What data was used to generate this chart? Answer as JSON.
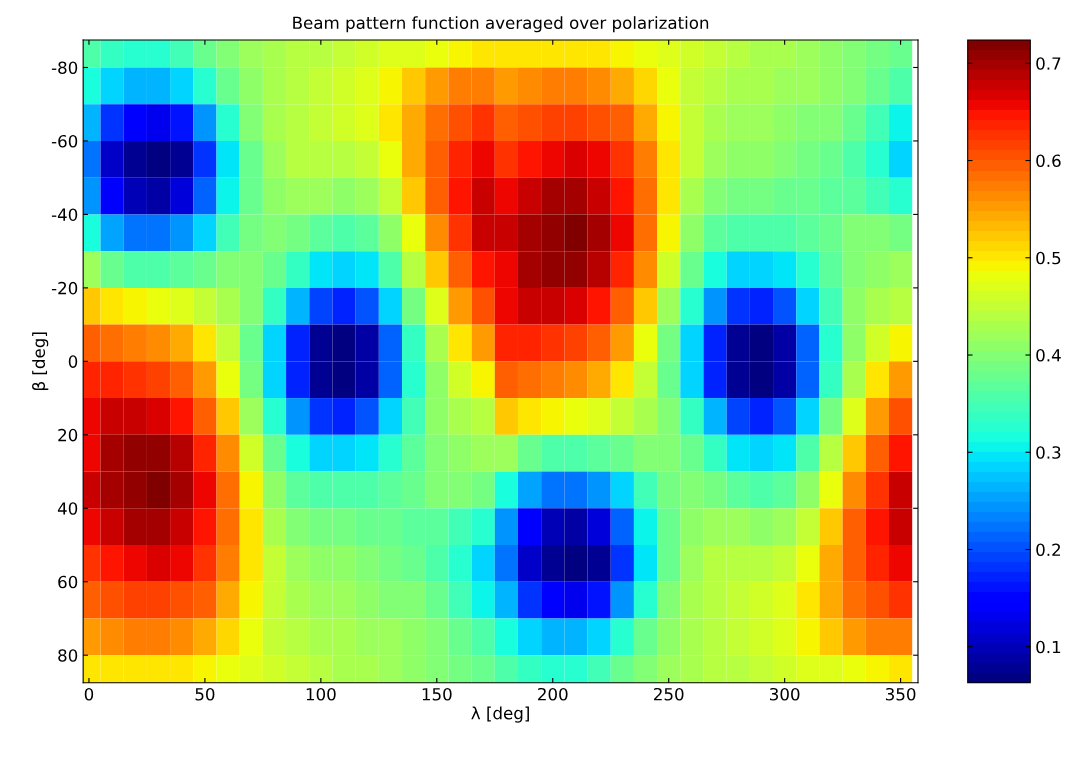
{
  "chart_data": {
    "type": "heatmap",
    "title": "Beam pattern function averaged over polarization",
    "xlabel": "λ [deg]",
    "ylabel": "β [deg]",
    "x": [
      0,
      10,
      20,
      30,
      40,
      50,
      60,
      70,
      80,
      90,
      100,
      110,
      120,
      130,
      140,
      150,
      160,
      170,
      180,
      190,
      200,
      210,
      220,
      230,
      240,
      250,
      260,
      270,
      280,
      290,
      300,
      310,
      320,
      330,
      340,
      350
    ],
    "y": [
      -85,
      -75,
      -65,
      -55,
      -45,
      -35,
      -25,
      -15,
      -5,
      5,
      15,
      25,
      35,
      45,
      55,
      65,
      75,
      85
    ],
    "xlim": [
      -2.5,
      357.5
    ],
    "ylim": [
      87.5,
      -87.5
    ],
    "xticks": [
      0,
      50,
      100,
      150,
      200,
      250,
      300,
      350
    ],
    "yticks": [
      -80,
      -60,
      -40,
      -20,
      0,
      20,
      40,
      60,
      80
    ],
    "clim": [
      0.063,
      0.724
    ],
    "cticks": [
      0.1,
      0.2,
      0.3,
      0.4,
      0.5,
      0.6,
      0.7
    ],
    "cells": [
      [
        0.36,
        0.34,
        0.33,
        0.33,
        0.35,
        0.38,
        0.4,
        0.42,
        0.43,
        0.44,
        0.44,
        0.45,
        0.46,
        0.47,
        0.47,
        0.48,
        0.49,
        0.5,
        0.5,
        0.5,
        0.5,
        0.5,
        0.5,
        0.49,
        0.48,
        0.47,
        0.46,
        0.45,
        0.44,
        0.43,
        0.43,
        0.42,
        0.41,
        0.4,
        0.39,
        0.38
      ],
      [
        0.32,
        0.28,
        0.26,
        0.26,
        0.28,
        0.33,
        0.38,
        0.41,
        0.43,
        0.44,
        0.45,
        0.46,
        0.47,
        0.49,
        0.52,
        0.55,
        0.57,
        0.57,
        0.55,
        0.56,
        0.57,
        0.57,
        0.56,
        0.54,
        0.51,
        0.48,
        0.45,
        0.44,
        0.43,
        0.43,
        0.42,
        0.42,
        0.41,
        0.4,
        0.38,
        0.36
      ],
      [
        0.26,
        0.18,
        0.14,
        0.13,
        0.16,
        0.24,
        0.33,
        0.4,
        0.43,
        0.44,
        0.45,
        0.46,
        0.47,
        0.5,
        0.54,
        0.58,
        0.61,
        0.63,
        0.6,
        0.61,
        0.62,
        0.62,
        0.61,
        0.59,
        0.54,
        0.49,
        0.45,
        0.43,
        0.42,
        0.42,
        0.41,
        0.4,
        0.4,
        0.38,
        0.35,
        0.31
      ],
      [
        0.22,
        0.11,
        0.08,
        0.07,
        0.08,
        0.18,
        0.3,
        0.38,
        0.42,
        0.44,
        0.44,
        0.44,
        0.45,
        0.48,
        0.54,
        0.6,
        0.64,
        0.66,
        0.63,
        0.65,
        0.66,
        0.67,
        0.66,
        0.63,
        0.57,
        0.5,
        0.45,
        0.42,
        0.41,
        0.41,
        0.4,
        0.39,
        0.38,
        0.36,
        0.33,
        0.28
      ],
      [
        0.24,
        0.14,
        0.1,
        0.09,
        0.12,
        0.21,
        0.31,
        0.38,
        0.41,
        0.42,
        0.42,
        0.41,
        0.42,
        0.45,
        0.52,
        0.59,
        0.65,
        0.68,
        0.66,
        0.68,
        0.7,
        0.7,
        0.68,
        0.65,
        0.58,
        0.5,
        0.43,
        0.4,
        0.39,
        0.39,
        0.38,
        0.38,
        0.37,
        0.37,
        0.35,
        0.33
      ],
      [
        0.32,
        0.25,
        0.22,
        0.22,
        0.24,
        0.29,
        0.35,
        0.39,
        0.4,
        0.39,
        0.37,
        0.36,
        0.37,
        0.41,
        0.48,
        0.56,
        0.63,
        0.68,
        0.68,
        0.7,
        0.71,
        0.72,
        0.7,
        0.66,
        0.58,
        0.49,
        0.41,
        0.37,
        0.36,
        0.36,
        0.36,
        0.37,
        0.38,
        0.4,
        0.4,
        0.39
      ],
      [
        0.42,
        0.38,
        0.36,
        0.36,
        0.37,
        0.38,
        0.4,
        0.4,
        0.38,
        0.34,
        0.3,
        0.28,
        0.3,
        0.36,
        0.44,
        0.52,
        0.6,
        0.65,
        0.66,
        0.7,
        0.71,
        0.71,
        0.69,
        0.64,
        0.56,
        0.46,
        0.38,
        0.32,
        0.29,
        0.28,
        0.3,
        0.33,
        0.37,
        0.4,
        0.41,
        0.42
      ],
      [
        0.52,
        0.5,
        0.49,
        0.48,
        0.47,
        0.45,
        0.43,
        0.4,
        0.34,
        0.26,
        0.19,
        0.17,
        0.2,
        0.29,
        0.39,
        0.47,
        0.55,
        0.61,
        0.66,
        0.68,
        0.68,
        0.67,
        0.65,
        0.6,
        0.52,
        0.42,
        0.33,
        0.24,
        0.18,
        0.17,
        0.2,
        0.28,
        0.35,
        0.41,
        0.43,
        0.44
      ],
      [
        0.6,
        0.58,
        0.57,
        0.56,
        0.54,
        0.5,
        0.45,
        0.38,
        0.29,
        0.17,
        0.08,
        0.07,
        0.09,
        0.21,
        0.34,
        0.43,
        0.5,
        0.55,
        0.64,
        0.64,
        0.63,
        0.62,
        0.6,
        0.55,
        0.48,
        0.39,
        0.29,
        0.17,
        0.08,
        0.07,
        0.09,
        0.21,
        0.33,
        0.41,
        0.46,
        0.49
      ],
      [
        0.64,
        0.64,
        0.63,
        0.62,
        0.6,
        0.55,
        0.48,
        0.39,
        0.29,
        0.17,
        0.08,
        0.07,
        0.09,
        0.21,
        0.33,
        0.41,
        0.46,
        0.49,
        0.6,
        0.58,
        0.57,
        0.56,
        0.54,
        0.5,
        0.45,
        0.38,
        0.29,
        0.17,
        0.08,
        0.07,
        0.09,
        0.21,
        0.34,
        0.43,
        0.5,
        0.55
      ],
      [
        0.66,
        0.68,
        0.68,
        0.67,
        0.65,
        0.6,
        0.52,
        0.42,
        0.33,
        0.24,
        0.18,
        0.17,
        0.2,
        0.28,
        0.35,
        0.41,
        0.43,
        0.44,
        0.52,
        0.5,
        0.49,
        0.48,
        0.47,
        0.45,
        0.43,
        0.4,
        0.34,
        0.26,
        0.19,
        0.17,
        0.2,
        0.29,
        0.39,
        0.47,
        0.55,
        0.61
      ],
      [
        0.66,
        0.7,
        0.71,
        0.71,
        0.69,
        0.64,
        0.56,
        0.46,
        0.38,
        0.32,
        0.29,
        0.28,
        0.3,
        0.33,
        0.37,
        0.4,
        0.41,
        0.42,
        0.42,
        0.38,
        0.36,
        0.36,
        0.37,
        0.38,
        0.4,
        0.4,
        0.38,
        0.34,
        0.3,
        0.28,
        0.3,
        0.36,
        0.44,
        0.52,
        0.6,
        0.65
      ],
      [
        0.68,
        0.7,
        0.71,
        0.72,
        0.7,
        0.66,
        0.58,
        0.49,
        0.41,
        0.37,
        0.36,
        0.36,
        0.36,
        0.37,
        0.38,
        0.4,
        0.4,
        0.39,
        0.32,
        0.25,
        0.22,
        0.22,
        0.24,
        0.29,
        0.35,
        0.39,
        0.4,
        0.39,
        0.37,
        0.36,
        0.37,
        0.41,
        0.48,
        0.56,
        0.63,
        0.68
      ],
      [
        0.66,
        0.68,
        0.7,
        0.7,
        0.68,
        0.65,
        0.58,
        0.5,
        0.43,
        0.4,
        0.39,
        0.39,
        0.38,
        0.38,
        0.37,
        0.37,
        0.35,
        0.33,
        0.24,
        0.14,
        0.1,
        0.09,
        0.12,
        0.21,
        0.31,
        0.38,
        0.41,
        0.42,
        0.42,
        0.41,
        0.42,
        0.45,
        0.52,
        0.59,
        0.65,
        0.68
      ],
      [
        0.63,
        0.65,
        0.66,
        0.67,
        0.66,
        0.63,
        0.57,
        0.5,
        0.45,
        0.42,
        0.41,
        0.41,
        0.4,
        0.39,
        0.38,
        0.36,
        0.33,
        0.28,
        0.22,
        0.11,
        0.08,
        0.07,
        0.08,
        0.18,
        0.3,
        0.38,
        0.42,
        0.44,
        0.44,
        0.44,
        0.45,
        0.48,
        0.54,
        0.6,
        0.64,
        0.66
      ],
      [
        0.6,
        0.61,
        0.62,
        0.62,
        0.61,
        0.59,
        0.54,
        0.49,
        0.45,
        0.43,
        0.42,
        0.42,
        0.41,
        0.4,
        0.4,
        0.38,
        0.35,
        0.31,
        0.26,
        0.18,
        0.14,
        0.13,
        0.16,
        0.24,
        0.33,
        0.4,
        0.43,
        0.44,
        0.45,
        0.46,
        0.47,
        0.5,
        0.54,
        0.58,
        0.61,
        0.63
      ],
      [
        0.55,
        0.56,
        0.57,
        0.57,
        0.56,
        0.54,
        0.51,
        0.48,
        0.45,
        0.44,
        0.43,
        0.43,
        0.42,
        0.42,
        0.41,
        0.4,
        0.38,
        0.36,
        0.32,
        0.28,
        0.26,
        0.26,
        0.28,
        0.33,
        0.38,
        0.41,
        0.43,
        0.44,
        0.45,
        0.46,
        0.47,
        0.49,
        0.52,
        0.55,
        0.57,
        0.57
      ],
      [
        0.5,
        0.5,
        0.5,
        0.5,
        0.5,
        0.49,
        0.48,
        0.47,
        0.46,
        0.45,
        0.44,
        0.43,
        0.43,
        0.42,
        0.41,
        0.4,
        0.39,
        0.38,
        0.36,
        0.34,
        0.33,
        0.33,
        0.35,
        0.38,
        0.4,
        0.42,
        0.43,
        0.44,
        0.44,
        0.45,
        0.46,
        0.47,
        0.47,
        0.48,
        0.49,
        0.5
      ]
    ]
  }
}
